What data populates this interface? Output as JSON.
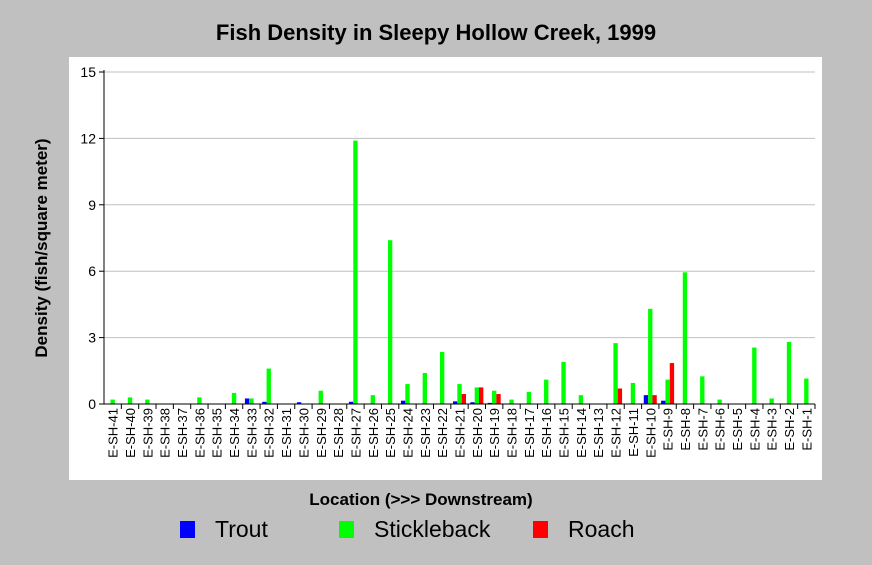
{
  "chart_data": {
    "type": "bar",
    "title": "Fish Density in Sleepy Hollow Creek, 1999",
    "xlabel": "Location (>>> Downstream)",
    "ylabel": "Density (fish/square meter)",
    "ylim": [
      0,
      15
    ],
    "yticks": [
      "0",
      "3",
      "6",
      "9",
      "12",
      "15"
    ],
    "grid": true,
    "legend_position": "bottom",
    "categories": [
      "E-SH-41",
      "E-SH-40",
      "E-SH-39",
      "E-SH-38",
      "E-SH-37",
      "E-SH-36",
      "E-SH-35",
      "E-SH-34",
      "E-SH-33",
      "E-SH-32",
      "E-SH-31",
      "E-SH-30",
      "E-SH-29",
      "E-SH-28",
      "E-SH-27",
      "E-SH-26",
      "E-SH-25",
      "E-SH-24",
      "E-SH-23",
      "E-SH-22",
      "E-SH-21",
      "E-SH-20",
      "E-SH-19",
      "E-SH-18",
      "E-SH-17",
      "E-SH-16",
      "E-SH-15",
      "E-SH-14",
      "E-SH-13",
      "E-SH-12",
      "E-SH-11",
      "E-SH-10",
      "E-SH-9",
      "E-SH-8",
      "E-SH-7",
      "E-SH-6",
      "E-SH-5",
      "E-SH-4",
      "E-SH-3",
      "E-SH-2",
      "E-SH-1"
    ],
    "series": [
      {
        "name": "Trout",
        "color": "#0000ff",
        "values": [
          0,
          0,
          0,
          0,
          0,
          0,
          0,
          0,
          0.25,
          0.1,
          0,
          0.08,
          0,
          0,
          0.1,
          0,
          0,
          0.15,
          0,
          0,
          0.12,
          0.08,
          0.05,
          0,
          0,
          0,
          0,
          0,
          0,
          0,
          0,
          0.4,
          0.15,
          0,
          0,
          0,
          0,
          0,
          0,
          0,
          0
        ]
      },
      {
        "name": "Stickleback",
        "color": "#00ff00",
        "values": [
          0.2,
          0.3,
          0.2,
          0,
          0,
          0.3,
          0,
          0.5,
          0.25,
          1.6,
          0,
          0,
          0.6,
          0,
          11.9,
          0.4,
          7.4,
          0.9,
          1.4,
          2.35,
          0.9,
          0.75,
          0.6,
          0.2,
          0.55,
          1.1,
          1.9,
          0.4,
          0,
          2.75,
          0.95,
          4.3,
          1.1,
          5.95,
          1.25,
          0.2,
          0,
          2.55,
          0.25,
          2.8,
          1.15
        ]
      },
      {
        "name": "Roach",
        "color": "#ff0000",
        "values": [
          0,
          0,
          0,
          0,
          0,
          0,
          0,
          0,
          0,
          0,
          0,
          0,
          0,
          0,
          0,
          0,
          0,
          0,
          0,
          0,
          0.45,
          0.75,
          0.45,
          0,
          0,
          0,
          0,
          0,
          0,
          0.7,
          0,
          0.4,
          1.85,
          0,
          0,
          0,
          0,
          0,
          0,
          0,
          0
        ]
      }
    ]
  }
}
